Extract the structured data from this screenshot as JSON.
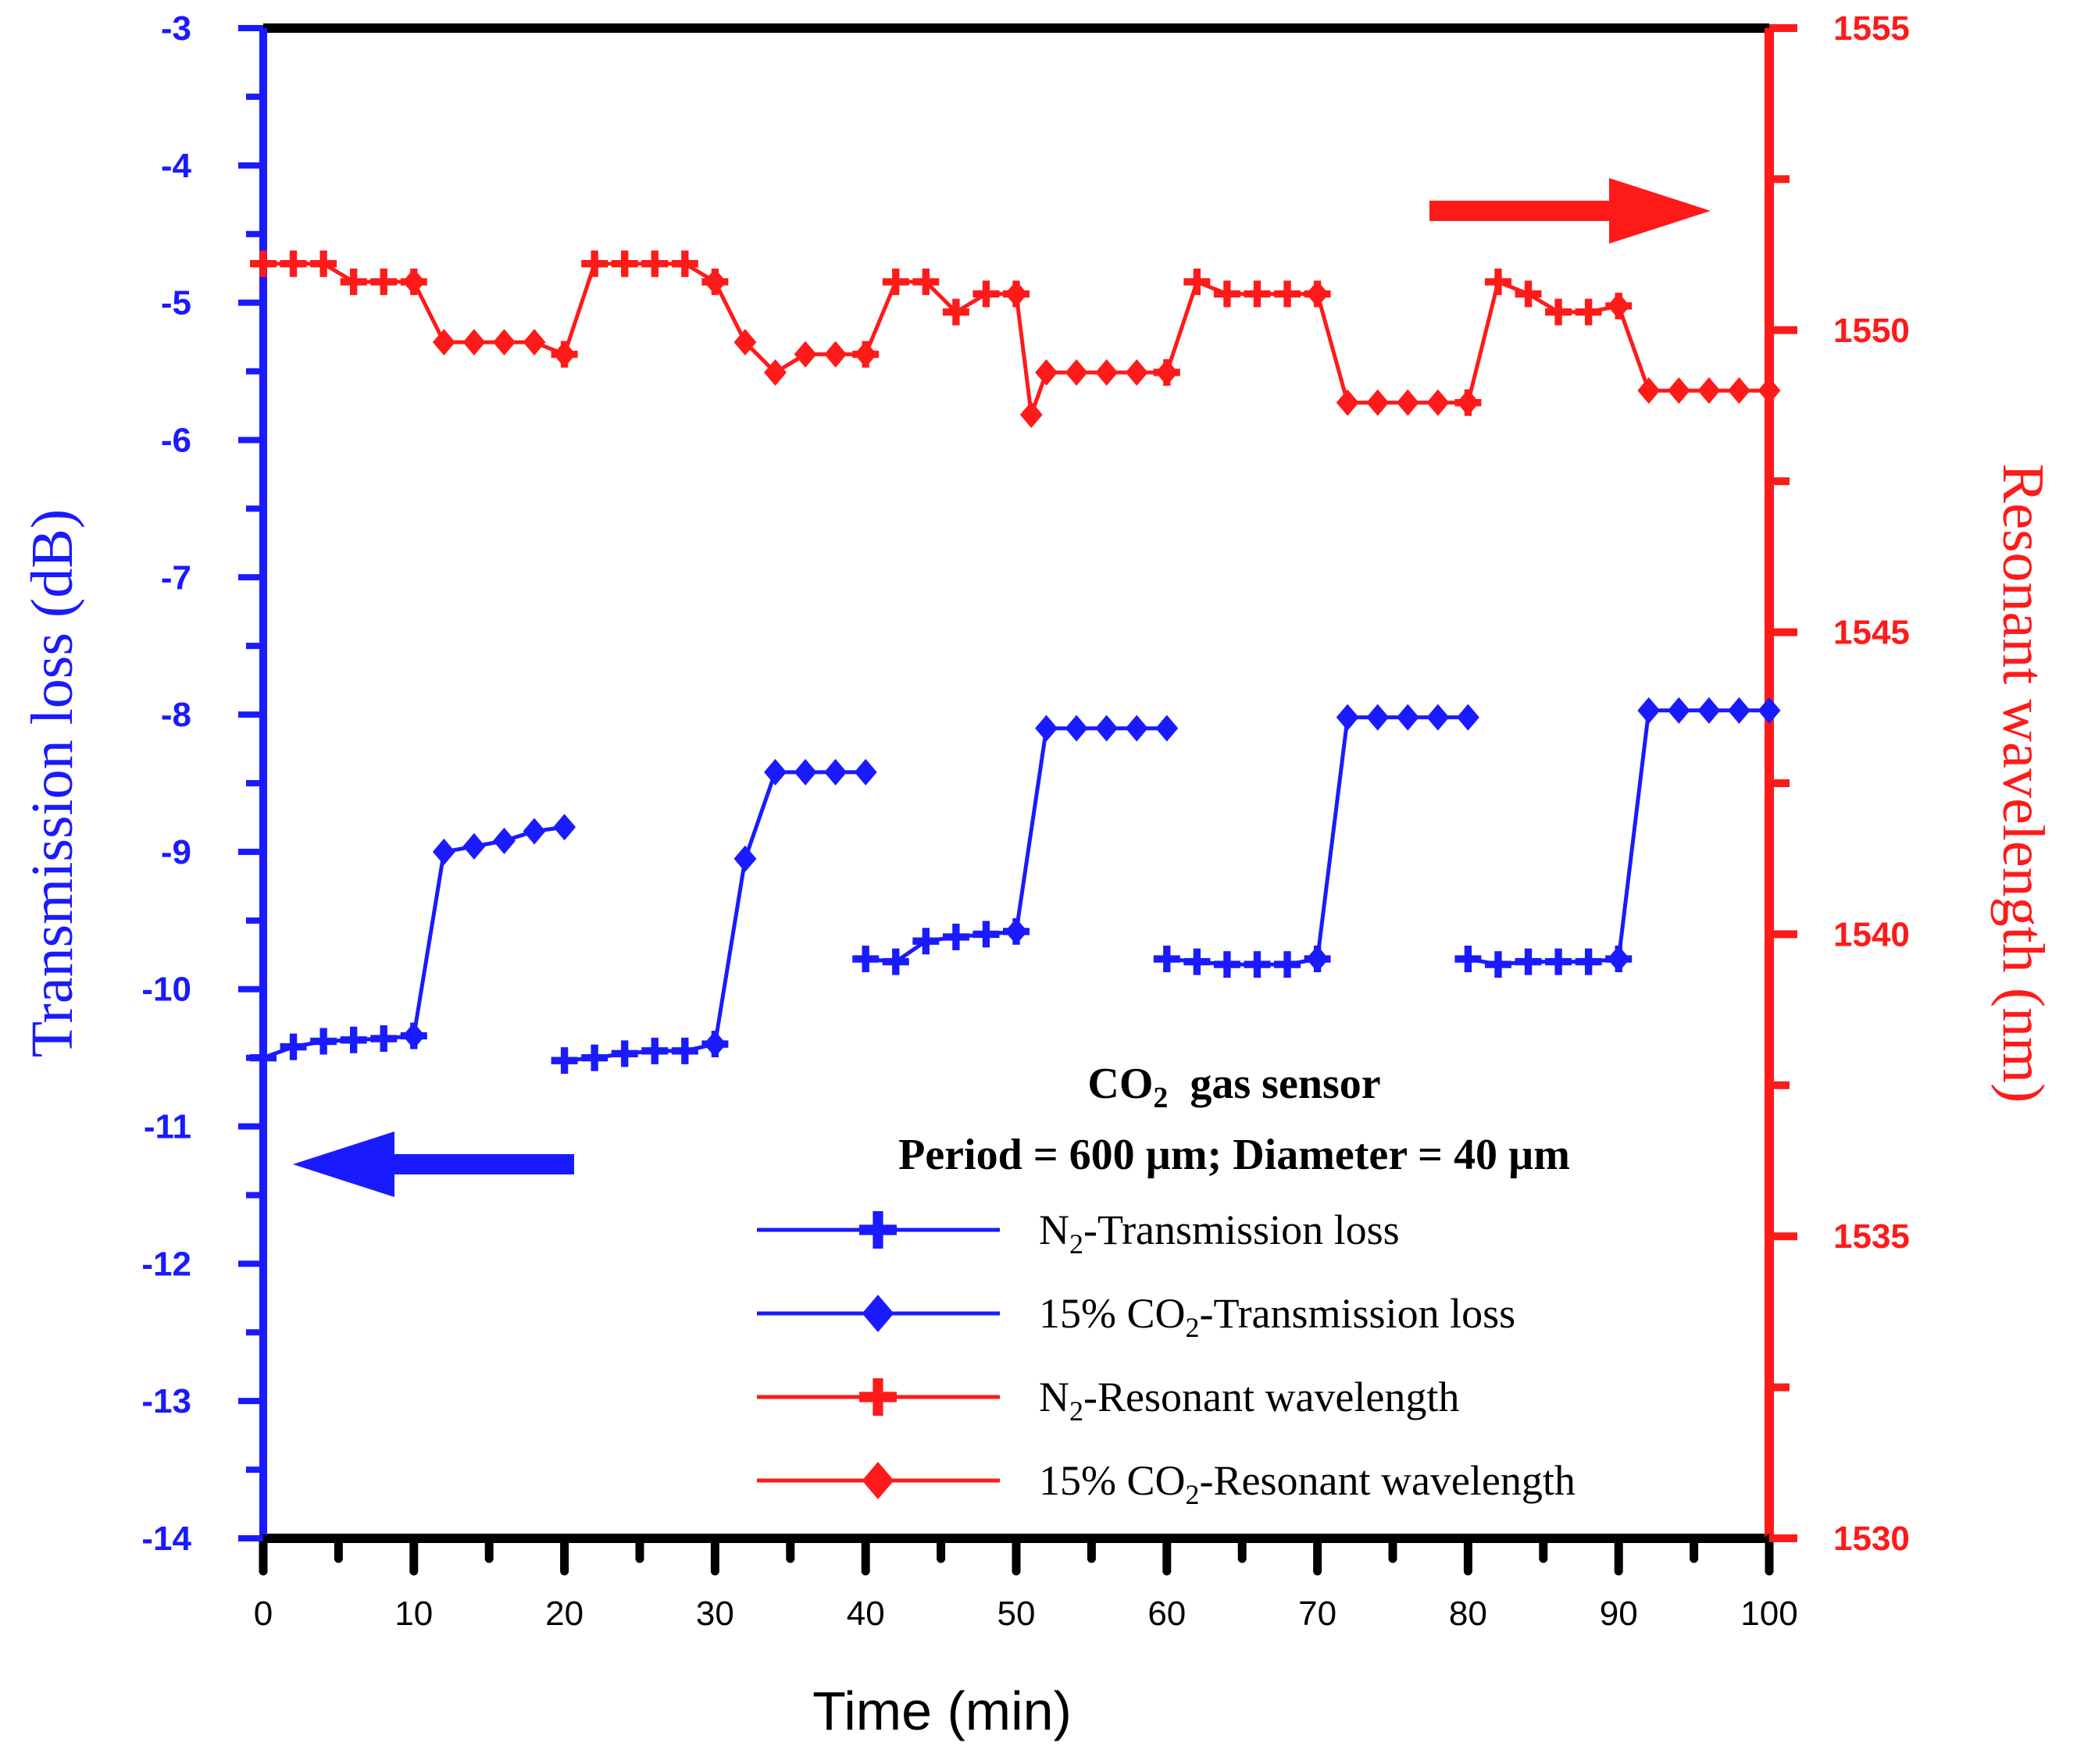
{
  "chart_data": {
    "type": "line",
    "x_axis": {
      "label": "Time (min)",
      "range": [
        0,
        100
      ],
      "ticks": [
        "0",
        "10",
        "20",
        "30",
        "40",
        "50",
        "60",
        "70",
        "80",
        "90",
        "100"
      ]
    },
    "y_axis_left": {
      "label": "Transmission loss (dB)",
      "range": [
        -14,
        -3
      ],
      "ticks": [
        "-3",
        "-4",
        "-5",
        "-6",
        "-7",
        "-8",
        "-9",
        "-10",
        "-11",
        "-12",
        "-13",
        "-14"
      ],
      "color": "#1a1aff"
    },
    "y_axis_right": {
      "label": "Resonant wavelength (nm)",
      "range": [
        1530,
        1555
      ],
      "ticks": [
        "1555",
        "1550",
        "1545",
        "1540",
        "1535",
        "1530"
      ],
      "color": "#ff1a1a"
    },
    "annotation": {
      "line1_main": "CO",
      "line1_sub": "2",
      "line1_rest": "  gas sensor",
      "line2": "Period = 600 µm; Diameter = 40 µm"
    },
    "series": [
      {
        "name": "N2-Transmission loss",
        "legend": {
          "pre": "N",
          "sub": "2",
          "post": "-Transmission loss"
        },
        "color": "#1a1aff",
        "marker": "plus",
        "axis": "left",
        "points": [
          [
            0,
            -10.5
          ],
          [
            2,
            -10.42
          ],
          [
            4,
            -10.38
          ],
          [
            6,
            -10.37
          ],
          [
            8,
            -10.36
          ],
          [
            10,
            -10.34
          ],
          [
            20,
            -10.52
          ],
          [
            22,
            -10.5
          ],
          [
            24,
            -10.47
          ],
          [
            26,
            -10.45
          ],
          [
            28,
            -10.45
          ],
          [
            30,
            -10.4
          ],
          [
            40,
            -9.78
          ],
          [
            42,
            -9.8
          ],
          [
            44,
            -9.65
          ],
          [
            46,
            -9.62
          ],
          [
            48,
            -9.6
          ],
          [
            50,
            -9.58
          ],
          [
            60,
            -9.78
          ],
          [
            62,
            -9.8
          ],
          [
            64,
            -9.82
          ],
          [
            66,
            -9.82
          ],
          [
            68,
            -9.82
          ],
          [
            70,
            -9.78
          ],
          [
            80,
            -9.78
          ],
          [
            82,
            -9.82
          ],
          [
            84,
            -9.8
          ],
          [
            86,
            -9.8
          ],
          [
            88,
            -9.8
          ],
          [
            90,
            -9.78
          ]
        ]
      },
      {
        "name": "15% CO2-Transmission loss",
        "legend": {
          "pre": "15% CO",
          "sub": "2",
          "post": "-Transmission loss"
        },
        "color": "#1a1aff",
        "marker": "diamond",
        "axis": "left",
        "points": [
          [
            10,
            -10.34
          ],
          [
            12,
            -9.0
          ],
          [
            14,
            -8.96
          ],
          [
            16,
            -8.92
          ],
          [
            18,
            -8.85
          ],
          [
            20,
            -8.82
          ],
          [
            30,
            -10.4
          ],
          [
            32,
            -9.05
          ],
          [
            34,
            -8.42
          ],
          [
            36,
            -8.42
          ],
          [
            38,
            -8.42
          ],
          [
            40,
            -8.42
          ],
          [
            50,
            -9.58
          ],
          [
            52,
            -8.1
          ],
          [
            54,
            -8.1
          ],
          [
            56,
            -8.1
          ],
          [
            58,
            -8.1
          ],
          [
            60,
            -8.1
          ],
          [
            70,
            -9.78
          ],
          [
            72,
            -8.02
          ],
          [
            74,
            -8.02
          ],
          [
            76,
            -8.02
          ],
          [
            78,
            -8.02
          ],
          [
            80,
            -8.02
          ],
          [
            90,
            -9.78
          ],
          [
            92,
            -7.97
          ],
          [
            94,
            -7.97
          ],
          [
            96,
            -7.97
          ],
          [
            98,
            -7.97
          ],
          [
            100,
            -7.97
          ]
        ]
      },
      {
        "name": "N2-Resonant wavelength",
        "legend": {
          "pre": "N",
          "sub": "2",
          "post": "-Resonant wavelength"
        },
        "color": "#ff1a1a",
        "marker": "plus",
        "axis": "right",
        "points": [
          [
            0,
            1551.1
          ],
          [
            2,
            1551.1
          ],
          [
            4,
            1551.1
          ],
          [
            6,
            1550.8
          ],
          [
            8,
            1550.8
          ],
          [
            10,
            1550.8
          ],
          [
            20,
            1549.6
          ],
          [
            22,
            1551.1
          ],
          [
            24,
            1551.1
          ],
          [
            26,
            1551.1
          ],
          [
            28,
            1551.1
          ],
          [
            30,
            1550.8
          ],
          [
            40,
            1549.6
          ],
          [
            42,
            1550.8
          ],
          [
            44,
            1550.8
          ],
          [
            46,
            1550.3
          ],
          [
            48,
            1550.6
          ],
          [
            50,
            1550.6
          ],
          [
            60,
            1549.3
          ],
          [
            62,
            1550.8
          ],
          [
            64,
            1550.6
          ],
          [
            66,
            1550.6
          ],
          [
            68,
            1550.6
          ],
          [
            70,
            1550.6
          ],
          [
            80,
            1548.8
          ],
          [
            82,
            1550.8
          ],
          [
            84,
            1550.6
          ],
          [
            86,
            1550.3
          ],
          [
            88,
            1550.3
          ],
          [
            90,
            1550.4
          ]
        ]
      },
      {
        "name": "15% CO2-Resonant wavelength",
        "legend": {
          "pre": "15% CO",
          "sub": "2",
          "post": "-Resonant wavelength"
        },
        "color": "#ff1a1a",
        "marker": "diamond",
        "axis": "right",
        "points": [
          [
            10,
            1550.8
          ],
          [
            12,
            1549.8
          ],
          [
            14,
            1549.8
          ],
          [
            16,
            1549.8
          ],
          [
            18,
            1549.8
          ],
          [
            20,
            1549.6
          ],
          [
            30,
            1550.8
          ],
          [
            32,
            1549.8
          ],
          [
            34,
            1549.3
          ],
          [
            36,
            1549.6
          ],
          [
            38,
            1549.6
          ],
          [
            40,
            1549.6
          ],
          [
            50,
            1550.6
          ],
          [
            51,
            1548.6
          ],
          [
            52,
            1549.3
          ],
          [
            54,
            1549.3
          ],
          [
            56,
            1549.3
          ],
          [
            58,
            1549.3
          ],
          [
            60,
            1549.3
          ],
          [
            70,
            1550.6
          ],
          [
            72,
            1548.8
          ],
          [
            74,
            1548.8
          ],
          [
            76,
            1548.8
          ],
          [
            78,
            1548.8
          ],
          [
            80,
            1548.8
          ],
          [
            90,
            1550.4
          ],
          [
            92,
            1549.0
          ],
          [
            94,
            1549.0
          ],
          [
            96,
            1549.0
          ],
          [
            98,
            1549.0
          ],
          [
            100,
            1549.0
          ]
        ]
      }
    ]
  }
}
